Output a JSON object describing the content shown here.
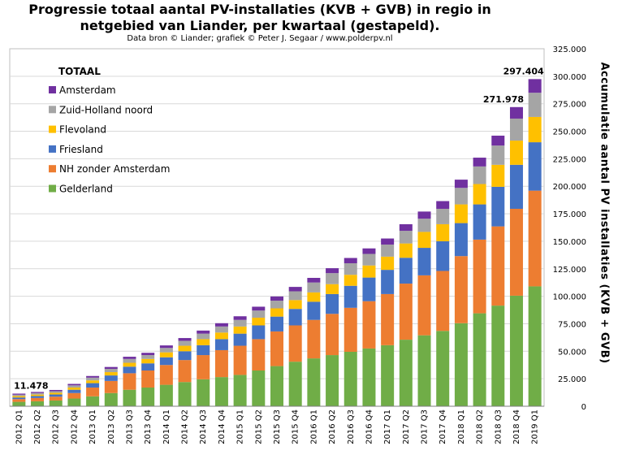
{
  "title_line1": "Progressie totaal aantal PV-installaties (KVB + GVB) in regio in",
  "title_line2": "netgebied van Liander, per kwartaal (gestapeld).",
  "subtitle": "Data bron © Liander; grafiek © Peter J. Segaar / www.polderpv.nl",
  "chart_data": {
    "type": "bar",
    "stacked": true,
    "ylabel": "Accumulatie aantal PV installaties (KVB + GVB)",
    "ylim": [
      0,
      325000
    ],
    "ytick_labels": [
      "0",
      "25.000",
      "50.000",
      "75.000",
      "100.000",
      "125.000",
      "150.000",
      "175.000",
      "200.000",
      "225.000",
      "250.000",
      "275.000",
      "300.000",
      "325.000"
    ],
    "grid": true,
    "legend_title": "TOTAAL",
    "legend_position": "top-left",
    "categories": [
      "2012 Q1",
      "2012 Q2",
      "2012 Q3",
      "2012 Q4",
      "2013 Q1",
      "2013 Q2",
      "2013 Q3",
      "2013 Q4",
      "2014 Q1",
      "2014 Q2",
      "2014 Q3",
      "2014 Q4",
      "2015 Q1",
      "2015 Q2",
      "2015 Q3",
      "2015 Q4",
      "2016 Q1",
      "2016 Q2",
      "2016 Q3",
      "2016 Q4",
      "2017 Q1",
      "2017 Q2",
      "2017 Q3",
      "2017 Q4",
      "2018 Q1",
      "2018 Q2",
      "2018 Q3",
      "2018 Q4",
      "2019 Q1"
    ],
    "series": [
      {
        "name": "Gelderland",
        "color": "#70ad47",
        "values": [
          4000,
          4500,
          5200,
          7000,
          9000,
          12000,
          15000,
          17000,
          19500,
          22000,
          24500,
          26500,
          28500,
          32500,
          36500,
          40500,
          43500,
          46500,
          49500,
          52500,
          55500,
          60500,
          64500,
          68500,
          75500,
          84500,
          91500,
          100500,
          109000
        ]
      },
      {
        "name": "NH zonder Amsterdam",
        "color": "#ed7d31",
        "values": [
          2500,
          3000,
          3500,
          5000,
          8000,
          11000,
          15000,
          15500,
          18000,
          20000,
          22000,
          24500,
          26500,
          28500,
          31500,
          33000,
          35000,
          37500,
          40000,
          43000,
          46500,
          51000,
          54500,
          54500,
          61000,
          67000,
          72000,
          79000,
          87000
        ]
      },
      {
        "name": "Friesland",
        "color": "#4472c4",
        "values": [
          1500,
          1800,
          2000,
          3000,
          4000,
          5000,
          6000,
          6500,
          7000,
          8000,
          9000,
          10000,
          11000,
          12500,
          13500,
          15000,
          16500,
          18000,
          20000,
          21500,
          22000,
          23500,
          25000,
          27000,
          30000,
          32000,
          36000,
          40000,
          44000
        ]
      },
      {
        "name": "Flevoland",
        "color": "#ffc000",
        "values": [
          1200,
          1300,
          1500,
          2000,
          2500,
          3000,
          3500,
          4000,
          4500,
          5000,
          5500,
          6000,
          6500,
          7000,
          7500,
          8000,
          8500,
          9000,
          10000,
          11000,
          12000,
          13000,
          14500,
          15500,
          17000,
          18500,
          20000,
          22000,
          23000
        ]
      },
      {
        "name": "Zuid-Holland noord",
        "color": "#a5a5a5",
        "values": [
          1300,
          1400,
          1500,
          2000,
          2500,
          3000,
          3500,
          3500,
          4000,
          4500,
          5000,
          5500,
          6000,
          6500,
          7000,
          8000,
          9000,
          10000,
          10500,
          10500,
          11000,
          11500,
          12000,
          14000,
          15000,
          16000,
          17500,
          20000,
          22000
        ]
      },
      {
        "name": "Amsterdam",
        "color": "#7030a0",
        "values": [
          978,
          1000,
          1100,
          1300,
          1500,
          1700,
          2000,
          2100,
          2300,
          2500,
          2800,
          3000,
          3300,
          3500,
          3800,
          4000,
          4200,
          4500,
          4800,
          5000,
          5500,
          6000,
          6500,
          7000,
          7500,
          8000,
          9000,
          10478,
          12404
        ]
      }
    ],
    "annotations": [
      {
        "category": "2012 Q1",
        "label": "11.478"
      },
      {
        "category": "2018 Q4",
        "label": "271.978"
      },
      {
        "category": "2019 Q1",
        "label": "297.404"
      }
    ]
  }
}
